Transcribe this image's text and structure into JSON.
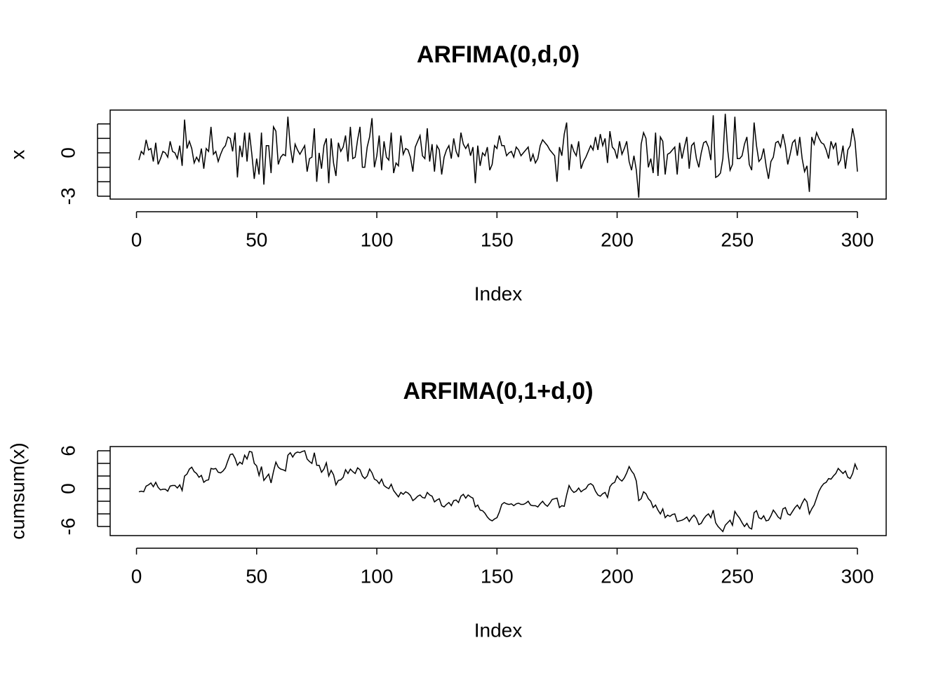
{
  "chart_data": [
    {
      "type": "line",
      "title": "ARFIMA(0,d,0)",
      "xlabel": "Index",
      "ylabel": "x",
      "color": "#000000",
      "xlim": [
        -10.96,
        311.96
      ],
      "ylim": [
        -3.2,
        2.96
      ],
      "xticks": [
        0,
        50,
        100,
        150,
        200,
        250,
        300
      ],
      "yticks": [
        -3,
        {
          "value": -2,
          "label": null
        },
        {
          "value": -1,
          "label": null
        },
        0,
        {
          "value": 1,
          "label": null
        },
        {
          "value": 2,
          "label": null
        }
      ],
      "x": [
        1,
        2,
        3,
        4,
        5,
        6,
        7,
        8,
        9,
        10,
        11,
        12,
        13,
        14,
        15,
        16,
        17,
        18,
        19,
        20,
        21,
        22,
        23,
        24,
        25,
        26,
        27,
        28,
        29,
        30,
        31,
        32,
        33,
        34,
        35,
        36,
        37,
        38,
        39,
        40,
        41,
        42,
        43,
        44,
        45,
        46,
        47,
        48,
        49,
        50,
        51,
        52,
        53,
        54,
        55,
        56,
        57,
        58,
        59,
        60,
        61,
        62,
        63,
        64,
        65,
        66,
        67,
        68,
        69,
        70,
        71,
        72,
        73,
        74,
        75,
        76,
        77,
        78,
        79,
        80,
        81,
        82,
        83,
        84,
        85,
        86,
        87,
        88,
        89,
        90,
        91,
        92,
        93,
        94,
        95,
        96,
        97,
        98,
        99,
        100,
        101,
        102,
        103,
        104,
        105,
        106,
        107,
        108,
        109,
        110,
        111,
        112,
        113,
        114,
        115,
        116,
        117,
        118,
        119,
        120,
        121,
        122,
        123,
        124,
        125,
        126,
        127,
        128,
        129,
        130,
        131,
        132,
        133,
        134,
        135,
        136,
        137,
        138,
        139,
        140,
        141,
        142,
        143,
        144,
        145,
        146,
        147,
        148,
        149,
        150,
        151,
        152,
        153,
        154,
        155,
        156,
        157,
        158,
        159,
        160,
        161,
        162,
        163,
        164,
        165,
        166,
        167,
        168,
        169,
        170,
        171,
        172,
        173,
        174,
        175,
        176,
        177,
        178,
        179,
        180,
        181,
        182,
        183,
        184,
        185,
        186,
        187,
        188,
        189,
        190,
        191,
        192,
        193,
        194,
        195,
        196,
        197,
        198,
        199,
        200,
        201,
        202,
        203,
        204,
        205,
        206,
        207,
        208,
        209,
        210,
        211,
        212,
        213,
        214,
        215,
        216,
        217,
        218,
        219,
        220,
        221,
        222,
        223,
        224,
        225,
        226,
        227,
        228,
        229,
        230,
        231,
        232,
        233,
        234,
        235,
        236,
        237,
        238,
        239,
        240,
        241,
        242,
        243,
        244,
        245,
        246,
        247,
        248,
        249,
        250,
        251,
        252,
        253,
        254,
        255,
        256,
        257,
        258,
        259,
        260,
        261,
        262,
        263,
        264,
        265,
        266,
        267,
        268,
        269,
        270,
        271,
        272,
        273,
        274,
        275,
        276,
        277,
        278,
        279,
        280,
        281,
        282,
        283,
        284,
        285,
        286,
        287,
        288,
        289,
        290,
        291,
        292,
        293,
        294,
        295,
        296,
        297,
        298,
        299,
        300
      ],
      "values": [
        -0.5,
        0.1,
        -0.1,
        0.9,
        0.2,
        0.3,
        -0.6,
        0.7,
        -0.8,
        -0.4,
        0.1,
        0,
        -0.3,
        0.8,
        0.1,
        0,
        -0.4,
        0.5,
        -0.9,
        2.3,
        0.3,
        0.8,
        0.3,
        -0.7,
        -0.3,
        -0.6,
        0.3,
        -1.1,
        0.3,
        0.1,
        1.8,
        -0.1,
        0.1,
        -0.6,
        -0.1,
        0.3,
        0.5,
        1.1,
        1,
        0.1,
        1.4,
        -1.7,
        0.5,
        -0.3,
        1.4,
        -0.6,
        1.4,
        -0.1,
        -1.8,
        -0.4,
        -1.5,
        1.4,
        -2.2,
        0.5,
        0.5,
        -1.4,
        1.8,
        1.5,
        -0.8,
        -0.3,
        -0.1,
        -0.2,
        2.5,
        0.4,
        -0.7,
        0.6,
        0.2,
        -0.1,
        0.2,
        0.5,
        -1.3,
        -0.4,
        -0.3,
        1.7,
        -2,
        0,
        -1.1,
        0.5,
        1,
        -2.1,
        1,
        -0.7,
        -1.6,
        0.7,
        0.1,
        0.4,
        1.2,
        -0.6,
        1.8,
        -0.4,
        -0.3,
        0.9,
        1.8,
        -1,
        -1,
        0.4,
        1.1,
        2.4,
        -1,
        -0.2,
        1.2,
        -1.2,
        0.8,
        -0.3,
        -0.5,
        1.4,
        -1.4,
        -0.7,
        -0.9,
        1.2,
        -0.1,
        0.3,
        0.2,
        -0.3,
        -1.3,
        0.4,
        0.8,
        1.2,
        -0.2,
        -0.4,
        1.7,
        -0.6,
        0.6,
        -1.3,
        0.5,
        0.2,
        -1.5,
        -0.3,
        0.2,
        0.5,
        -0.4,
        1,
        0.1,
        -0.3,
        1.4,
        0.6,
        0.3,
        0.6,
        -0.2,
        0.4,
        -2.1,
        0.5,
        -0.9,
        0,
        -0.2,
        0.4,
        -1.2,
        -0.8,
        0.5,
        0.3,
        1.2,
        0.5,
        0.5,
        -0.2,
        0,
        0.1,
        -0.3,
        0.4,
        0.2,
        -0.2,
        0,
        0.2,
        0.4,
        -0.6,
        -0.1,
        -0.7,
        -0.4,
        0.5,
        0.9,
        0.7,
        0.5,
        0.2,
        0,
        -0.2,
        -2,
        0.4,
        -0.2,
        1.3,
        2.1,
        -1.2,
        0.6,
        0.1,
        -0.2,
        0.8,
        -1.1,
        -0.6,
        -0.3,
        0.1,
        0.5,
        0.2,
        1.1,
        0.2,
        1.3,
        0.5,
        1,
        -0.7,
        1.5,
        0.4,
        0.2,
        -0.4,
        0.8,
        -0.1,
        0.3,
        0.8,
        -0.6,
        -1.2,
        -0.2,
        -1.2,
        -3.1,
        0.6,
        1.4,
        1,
        -1,
        -0.4,
        -1.4,
        1.4,
        -1.6,
        1.1,
        0.8,
        -1.5,
        -0.1,
        0,
        0.2,
        0.4,
        -1.5,
        0.7,
        -0.4,
        0.4,
        1.1,
        -1.1,
        0.5,
        0.7,
        -0.4,
        -1,
        0,
        0.7,
        0.8,
        0.4,
        -0.5,
        2.6,
        -1.7,
        -1.6,
        -1.4,
        -0.4,
        2.7,
        0.2,
        -1.2,
        -0.8,
        2.5,
        -0.4,
        -0.4,
        -0.2,
        0.6,
        1.1,
        -0.8,
        -1.2,
        2.1,
        0.5,
        -0.6,
        -0.4,
        0.3,
        -0.9,
        -1.8,
        -0.6,
        -0.3,
        0.7,
        0.8,
        0.4,
        1.3,
        0.5,
        -0.8,
        -0.1,
        0.7,
        0.9,
        -0.2,
        1.1,
        -0.4,
        -1.3,
        -0.9,
        -2.7,
        1.1,
        0.6,
        1.4,
        1,
        0.7,
        0.6,
        0.2,
        -0.4,
        0.8,
        0.3,
        0.7,
        -0.8,
        -0.5,
        0.5,
        -1.1,
        0.2,
        0.5,
        1.7,
        0.8,
        -1.3
      ]
    },
    {
      "type": "line",
      "title": "ARFIMA(0,1+d,0)",
      "xlabel": "Index",
      "ylabel": "cumsum(x)",
      "color": "#000000",
      "xlim": [
        -10.96,
        311.96
      ],
      "ylim": [
        -7.44,
        6.67
      ],
      "xticks": [
        0,
        50,
        100,
        150,
        200,
        250,
        300
      ],
      "yticks": [
        -6,
        {
          "value": -4,
          "label": null
        },
        {
          "value": -2,
          "label": null
        },
        0,
        {
          "value": 2,
          "label": null
        },
        {
          "value": 4,
          "label": null
        },
        6
      ],
      "x": [
        1,
        2,
        3,
        4,
        5,
        6,
        7,
        8,
        9,
        10,
        11,
        12,
        13,
        14,
        15,
        16,
        17,
        18,
        19,
        20,
        21,
        22,
        23,
        24,
        25,
        26,
        27,
        28,
        29,
        30,
        31,
        32,
        33,
        34,
        35,
        36,
        37,
        38,
        39,
        40,
        41,
        42,
        43,
        44,
        45,
        46,
        47,
        48,
        49,
        50,
        51,
        52,
        53,
        54,
        55,
        56,
        57,
        58,
        59,
        60,
        61,
        62,
        63,
        64,
        65,
        66,
        67,
        68,
        69,
        70,
        71,
        72,
        73,
        74,
        75,
        76,
        77,
        78,
        79,
        80,
        81,
        82,
        83,
        84,
        85,
        86,
        87,
        88,
        89,
        90,
        91,
        92,
        93,
        94,
        95,
        96,
        97,
        98,
        99,
        100,
        101,
        102,
        103,
        104,
        105,
        106,
        107,
        108,
        109,
        110,
        111,
        112,
        113,
        114,
        115,
        116,
        117,
        118,
        119,
        120,
        121,
        122,
        123,
        124,
        125,
        126,
        127,
        128,
        129,
        130,
        131,
        132,
        133,
        134,
        135,
        136,
        137,
        138,
        139,
        140,
        141,
        142,
        143,
        144,
        145,
        146,
        147,
        148,
        149,
        150,
        151,
        152,
        153,
        154,
        155,
        156,
        157,
        158,
        159,
        160,
        161,
        162,
        163,
        164,
        165,
        166,
        167,
        168,
        169,
        170,
        171,
        172,
        173,
        174,
        175,
        176,
        177,
        178,
        179,
        180,
        181,
        182,
        183,
        184,
        185,
        186,
        187,
        188,
        189,
        190,
        191,
        192,
        193,
        194,
        195,
        196,
        197,
        198,
        199,
        200,
        201,
        202,
        203,
        204,
        205,
        206,
        207,
        208,
        209,
        210,
        211,
        212,
        213,
        214,
        215,
        216,
        217,
        218,
        219,
        220,
        221,
        222,
        223,
        224,
        225,
        226,
        227,
        228,
        229,
        230,
        231,
        232,
        233,
        234,
        235,
        236,
        237,
        238,
        239,
        240,
        241,
        242,
        243,
        244,
        245,
        246,
        247,
        248,
        249,
        250,
        251,
        252,
        253,
        254,
        255,
        256,
        257,
        258,
        259,
        260,
        261,
        262,
        263,
        264,
        265,
        266,
        267,
        268,
        269,
        270,
        271,
        272,
        273,
        274,
        275,
        276,
        277,
        278,
        279,
        280,
        281,
        282,
        283,
        284,
        285,
        286,
        287,
        288,
        289,
        290,
        291,
        292,
        293,
        294,
        295,
        296,
        297,
        298,
        299,
        300
      ],
      "values": [
        -0.5,
        -0.4,
        -0.5,
        0.4,
        0.6,
        0.9,
        0.3,
        1,
        0.2,
        -0.2,
        -0.1,
        -0.1,
        -0.4,
        0.4,
        0.5,
        0.5,
        0.1,
        0.6,
        -0.3,
        2,
        2.3,
        3.1,
        3.4,
        2.7,
        2.4,
        1.8,
        2.1,
        1,
        1.3,
        1.4,
        3.2,
        3.1,
        3.2,
        2.6,
        2.5,
        2.8,
        3.3,
        4.4,
        5.4,
        5.5,
        4.8,
        3.7,
        4.2,
        3.9,
        5.3,
        4.7,
        5.9,
        5.8,
        4,
        3.6,
        2.1,
        3.5,
        1.3,
        1.8,
        2.3,
        0.9,
        2.7,
        4.2,
        3.4,
        3.1,
        3,
        2.8,
        5.3,
        5.7,
        5,
        5.6,
        5.8,
        5.7,
        5.9,
        6,
        4.7,
        4.3,
        4,
        5.7,
        3.7,
        3.7,
        2.6,
        3.1,
        4.1,
        2,
        2.9,
        2.2,
        0.6,
        1.3,
        1.4,
        1.8,
        3,
        2.4,
        3.1,
        2.7,
        2.4,
        3.3,
        3,
        2,
        1.6,
        2,
        3.1,
        2.5,
        1.5,
        1.3,
        0.8,
        1.5,
        0.5,
        0.2,
        0,
        0.7,
        -0.3,
        -0.8,
        -1.3,
        -0.6,
        -0.9,
        -0.5,
        -0.7,
        -1.1,
        -1.9,
        -1.6,
        -1.2,
        -1,
        -1.4,
        -1.5,
        -0.6,
        -1,
        -1.2,
        -2.1,
        -1.8,
        -1.6,
        -2.7,
        -2.9,
        -2.5,
        -2.2,
        -2.7,
        -1.9,
        -1.8,
        -2.2,
        -1.2,
        -0.9,
        -1.5,
        -1,
        -1.3,
        -1.5,
        -2.9,
        -2.6,
        -3.4,
        -3.5,
        -3.9,
        -4.5,
        -4.9,
        -5.1,
        -4.8,
        -4.6,
        -3.7,
        -2.5,
        -2.2,
        -2.4,
        -2.5,
        -2.4,
        -2.7,
        -2.4,
        -2.3,
        -2.5,
        -2.5,
        -2.3,
        -2,
        -2.6,
        -2.7,
        -2.7,
        -2.9,
        -2.4,
        -2,
        -2.5,
        -2.8,
        -2.3,
        -1.7,
        -1.6,
        -1.5,
        -3,
        -2.7,
        -2.8,
        -1,
        0.5,
        -0.2,
        -0.6,
        -0.4,
        0.1,
        -0.5,
        -0.2,
        0,
        0.6,
        0.8,
        0.5,
        -0.4,
        -1,
        -1.2,
        -0.8,
        -0.6,
        -1.4,
        0.3,
        0.8,
        1,
        2,
        1.5,
        1.2,
        1.7,
        2.5,
        3.5,
        2.8,
        2.3,
        1.2,
        -1.9,
        -1.6,
        -0.5,
        -0.8,
        -1.6,
        -2,
        -3,
        -2.6,
        -3.4,
        -4,
        -3.2,
        -4.6,
        -4.2,
        -4.4,
        -4.1,
        -4,
        -5.2,
        -5.1,
        -5,
        -4.8,
        -4.5,
        -5.2,
        -4.6,
        -4.2,
        -4.7,
        -5.7,
        -5.5,
        -4.8,
        -4.3,
        -4,
        -4.6,
        -3.4,
        -5.4,
        -6,
        -6.4,
        -6.8,
        -5.8,
        -5.4,
        -5,
        -5.8,
        -3.6,
        -4.2,
        -4.7,
        -5.4,
        -6,
        -5.5,
        -6.2,
        -6.4,
        -3.8,
        -3.5,
        -4.6,
        -4.8,
        -4.3,
        -5.1,
        -5,
        -4.3,
        -3.4,
        -3.9,
        -4.5,
        -4.8,
        -3.2,
        -3,
        -4,
        -4.2,
        -3.6,
        -3,
        -2.6,
        -3.2,
        -2.3,
        -1.6,
        -2.1,
        -4,
        -3.2,
        -2.6,
        -1.5,
        -0.4,
        0.3,
        0.8,
        1,
        1.6,
        1.5,
        2,
        2.4,
        3.2,
        2.8,
        2.4,
        2.8,
        1.8,
        1.6,
        2.4,
        3.9,
        3
      ]
    }
  ]
}
